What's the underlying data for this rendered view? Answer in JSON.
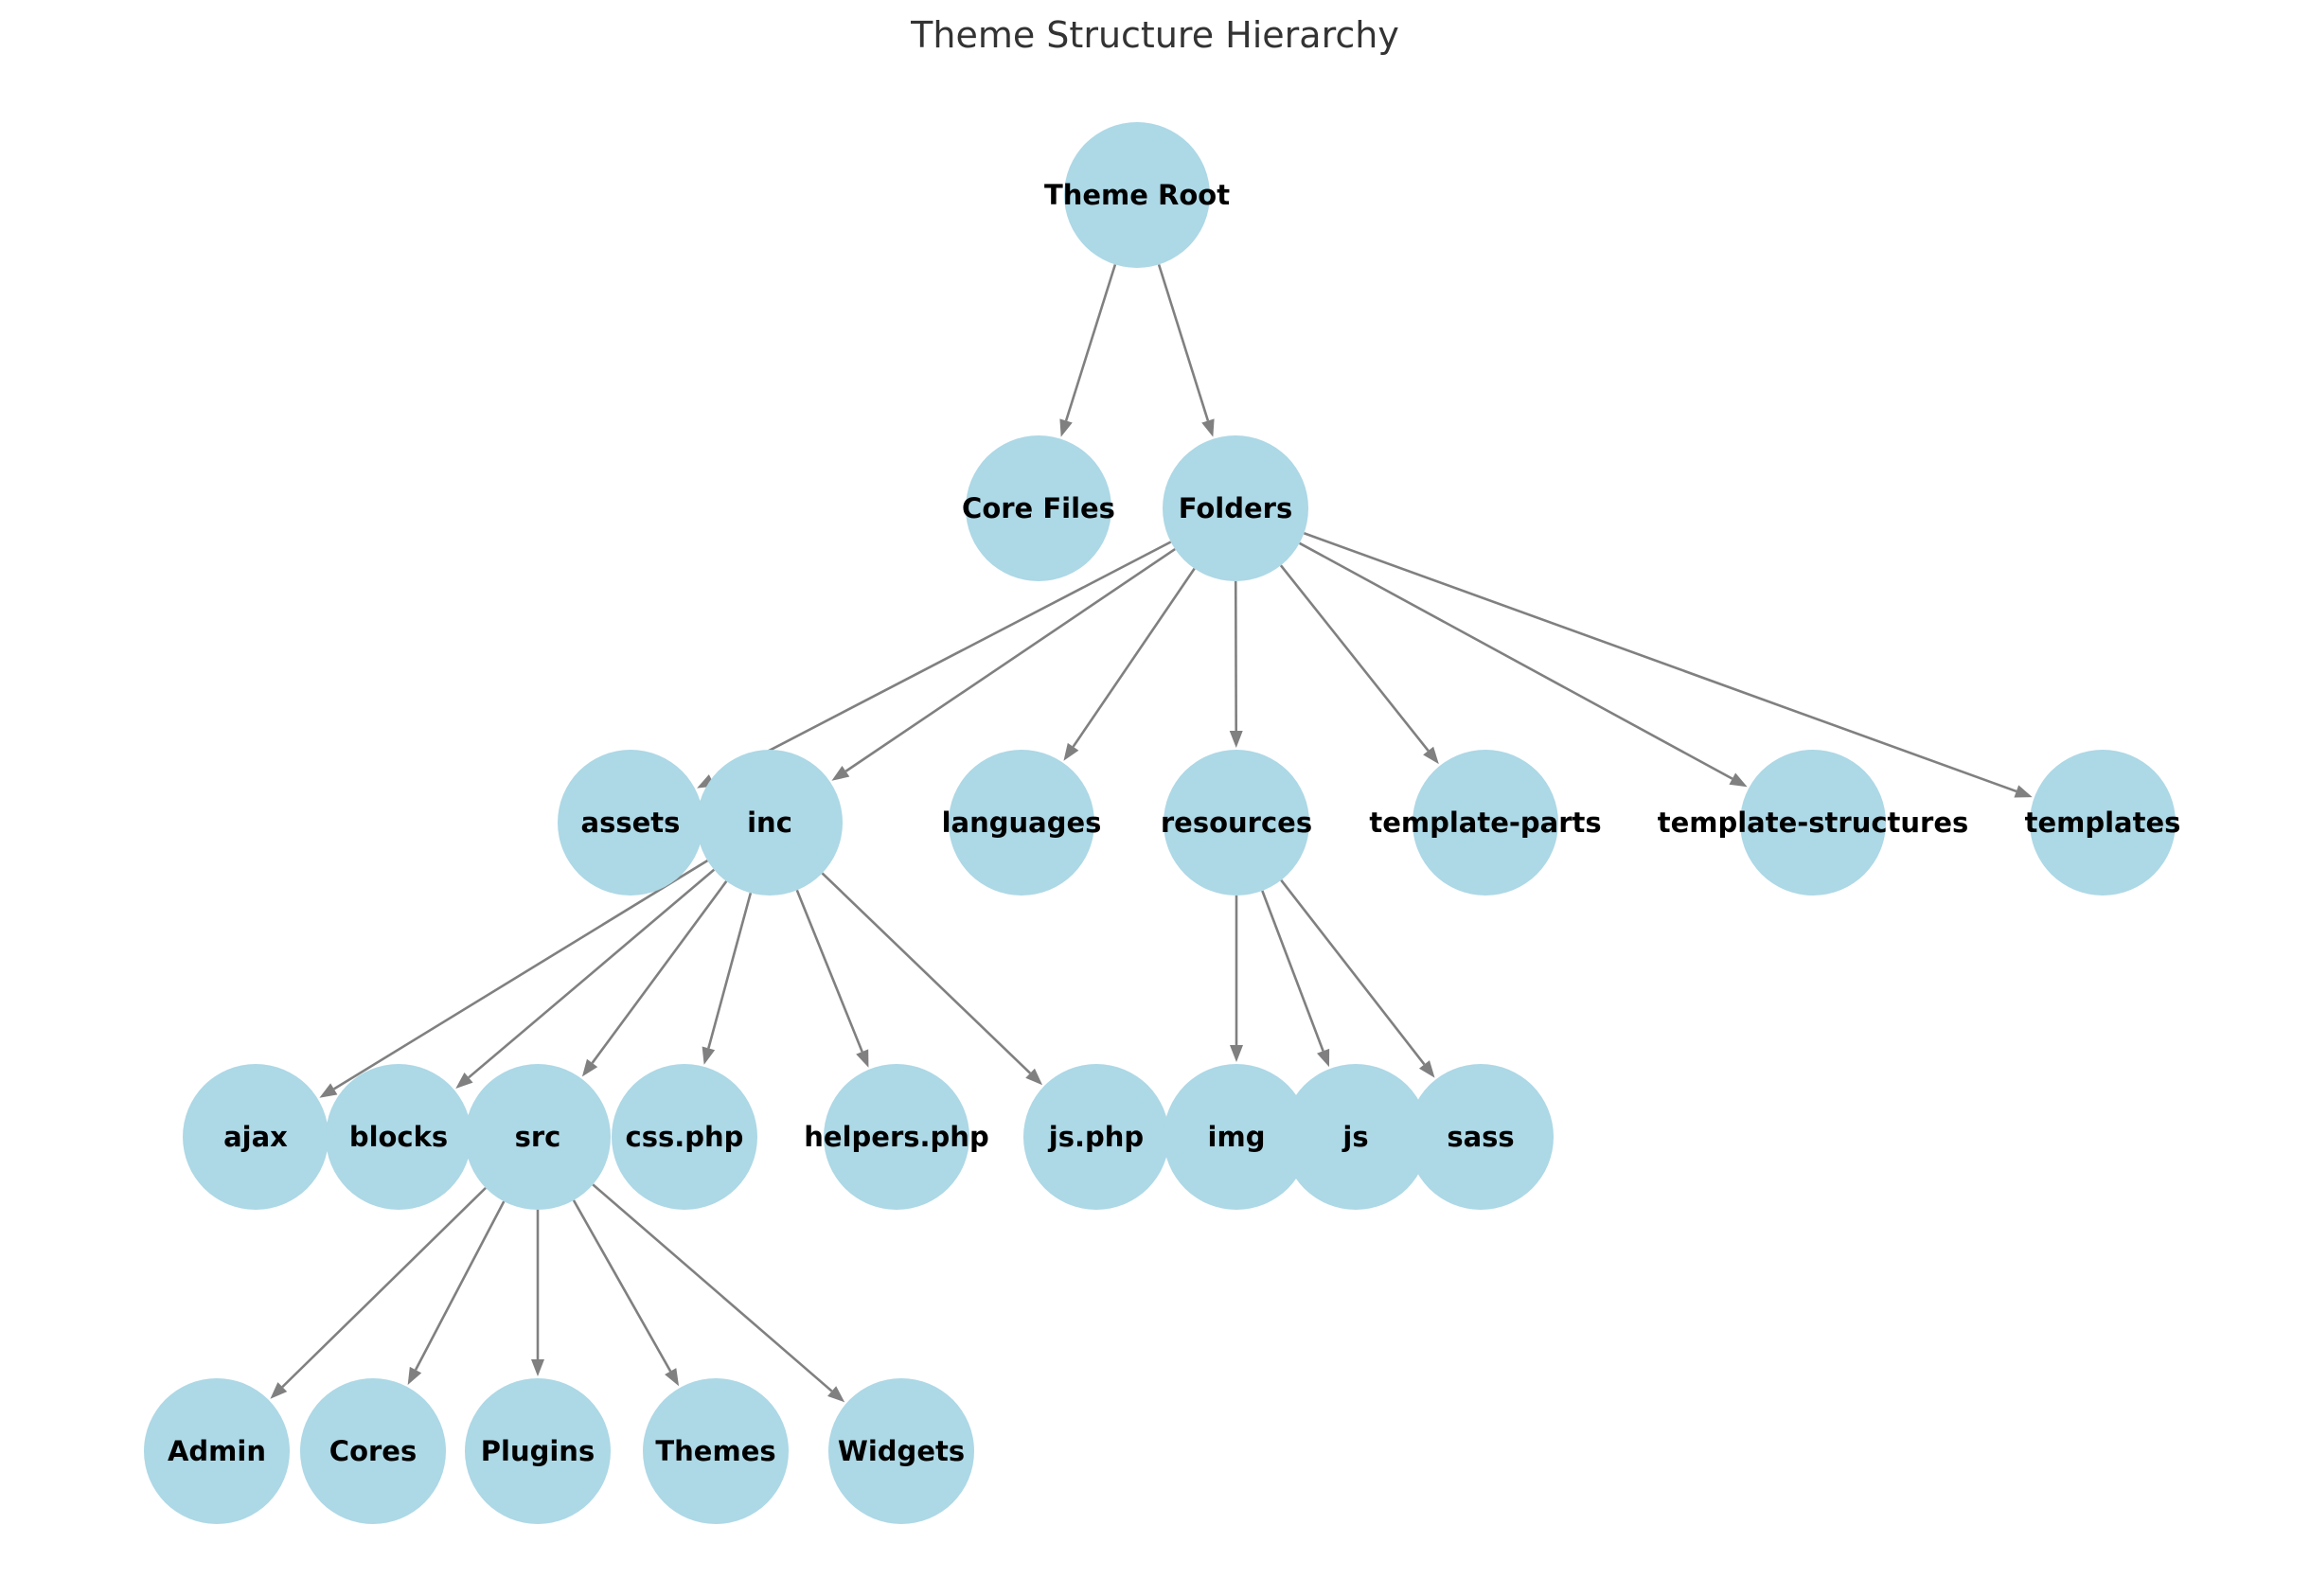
{
  "title": "Theme Structure Hierarchy",
  "colors": {
    "node_fill": "#add8e6",
    "edge": "#808080",
    "label": "#000000",
    "title": "#333333"
  },
  "nodes": [
    {
      "id": "theme-root",
      "label": "Theme Root",
      "level": 0
    },
    {
      "id": "core-files",
      "label": "Core Files",
      "level": 1
    },
    {
      "id": "folders",
      "label": "Folders",
      "level": 1
    },
    {
      "id": "assets",
      "label": "assets",
      "level": 2
    },
    {
      "id": "inc",
      "label": "inc",
      "level": 2
    },
    {
      "id": "languages",
      "label": "languages",
      "level": 2
    },
    {
      "id": "resources",
      "label": "resources",
      "level": 2
    },
    {
      "id": "template-parts",
      "label": "template-parts",
      "level": 2
    },
    {
      "id": "template-structures",
      "label": "template-structures",
      "level": 2
    },
    {
      "id": "templates",
      "label": "templates",
      "level": 2
    },
    {
      "id": "ajax",
      "label": "ajax",
      "level": 3
    },
    {
      "id": "blocks",
      "label": "blocks",
      "level": 3
    },
    {
      "id": "src",
      "label": "src",
      "level": 3
    },
    {
      "id": "css-php",
      "label": "css.php",
      "level": 3
    },
    {
      "id": "helpers-php",
      "label": "helpers.php",
      "level": 3
    },
    {
      "id": "js-php",
      "label": "js.php",
      "level": 3
    },
    {
      "id": "img",
      "label": "img",
      "level": 3
    },
    {
      "id": "js",
      "label": "js",
      "level": 3
    },
    {
      "id": "sass",
      "label": "sass",
      "level": 3
    },
    {
      "id": "admin",
      "label": "Admin",
      "level": 4
    },
    {
      "id": "cores",
      "label": "Cores",
      "level": 4
    },
    {
      "id": "plugins",
      "label": "Plugins",
      "level": 4
    },
    {
      "id": "themes",
      "label": "Themes",
      "level": 4
    },
    {
      "id": "widgets",
      "label": "Widgets",
      "level": 4
    }
  ],
  "edges": [
    {
      "from": "theme-root",
      "to": "core-files"
    },
    {
      "from": "theme-root",
      "to": "folders"
    },
    {
      "from": "folders",
      "to": "assets"
    },
    {
      "from": "folders",
      "to": "inc"
    },
    {
      "from": "folders",
      "to": "languages"
    },
    {
      "from": "folders",
      "to": "resources"
    },
    {
      "from": "folders",
      "to": "template-parts"
    },
    {
      "from": "folders",
      "to": "template-structures"
    },
    {
      "from": "folders",
      "to": "templates"
    },
    {
      "from": "inc",
      "to": "ajax"
    },
    {
      "from": "inc",
      "to": "blocks"
    },
    {
      "from": "inc",
      "to": "src"
    },
    {
      "from": "inc",
      "to": "css-php"
    },
    {
      "from": "inc",
      "to": "helpers-php"
    },
    {
      "from": "inc",
      "to": "js-php"
    },
    {
      "from": "resources",
      "to": "img"
    },
    {
      "from": "resources",
      "to": "js"
    },
    {
      "from": "resources",
      "to": "sass"
    },
    {
      "from": "src",
      "to": "admin"
    },
    {
      "from": "src",
      "to": "cores"
    },
    {
      "from": "src",
      "to": "plugins"
    },
    {
      "from": "src",
      "to": "themes"
    },
    {
      "from": "src",
      "to": "widgets"
    }
  ]
}
